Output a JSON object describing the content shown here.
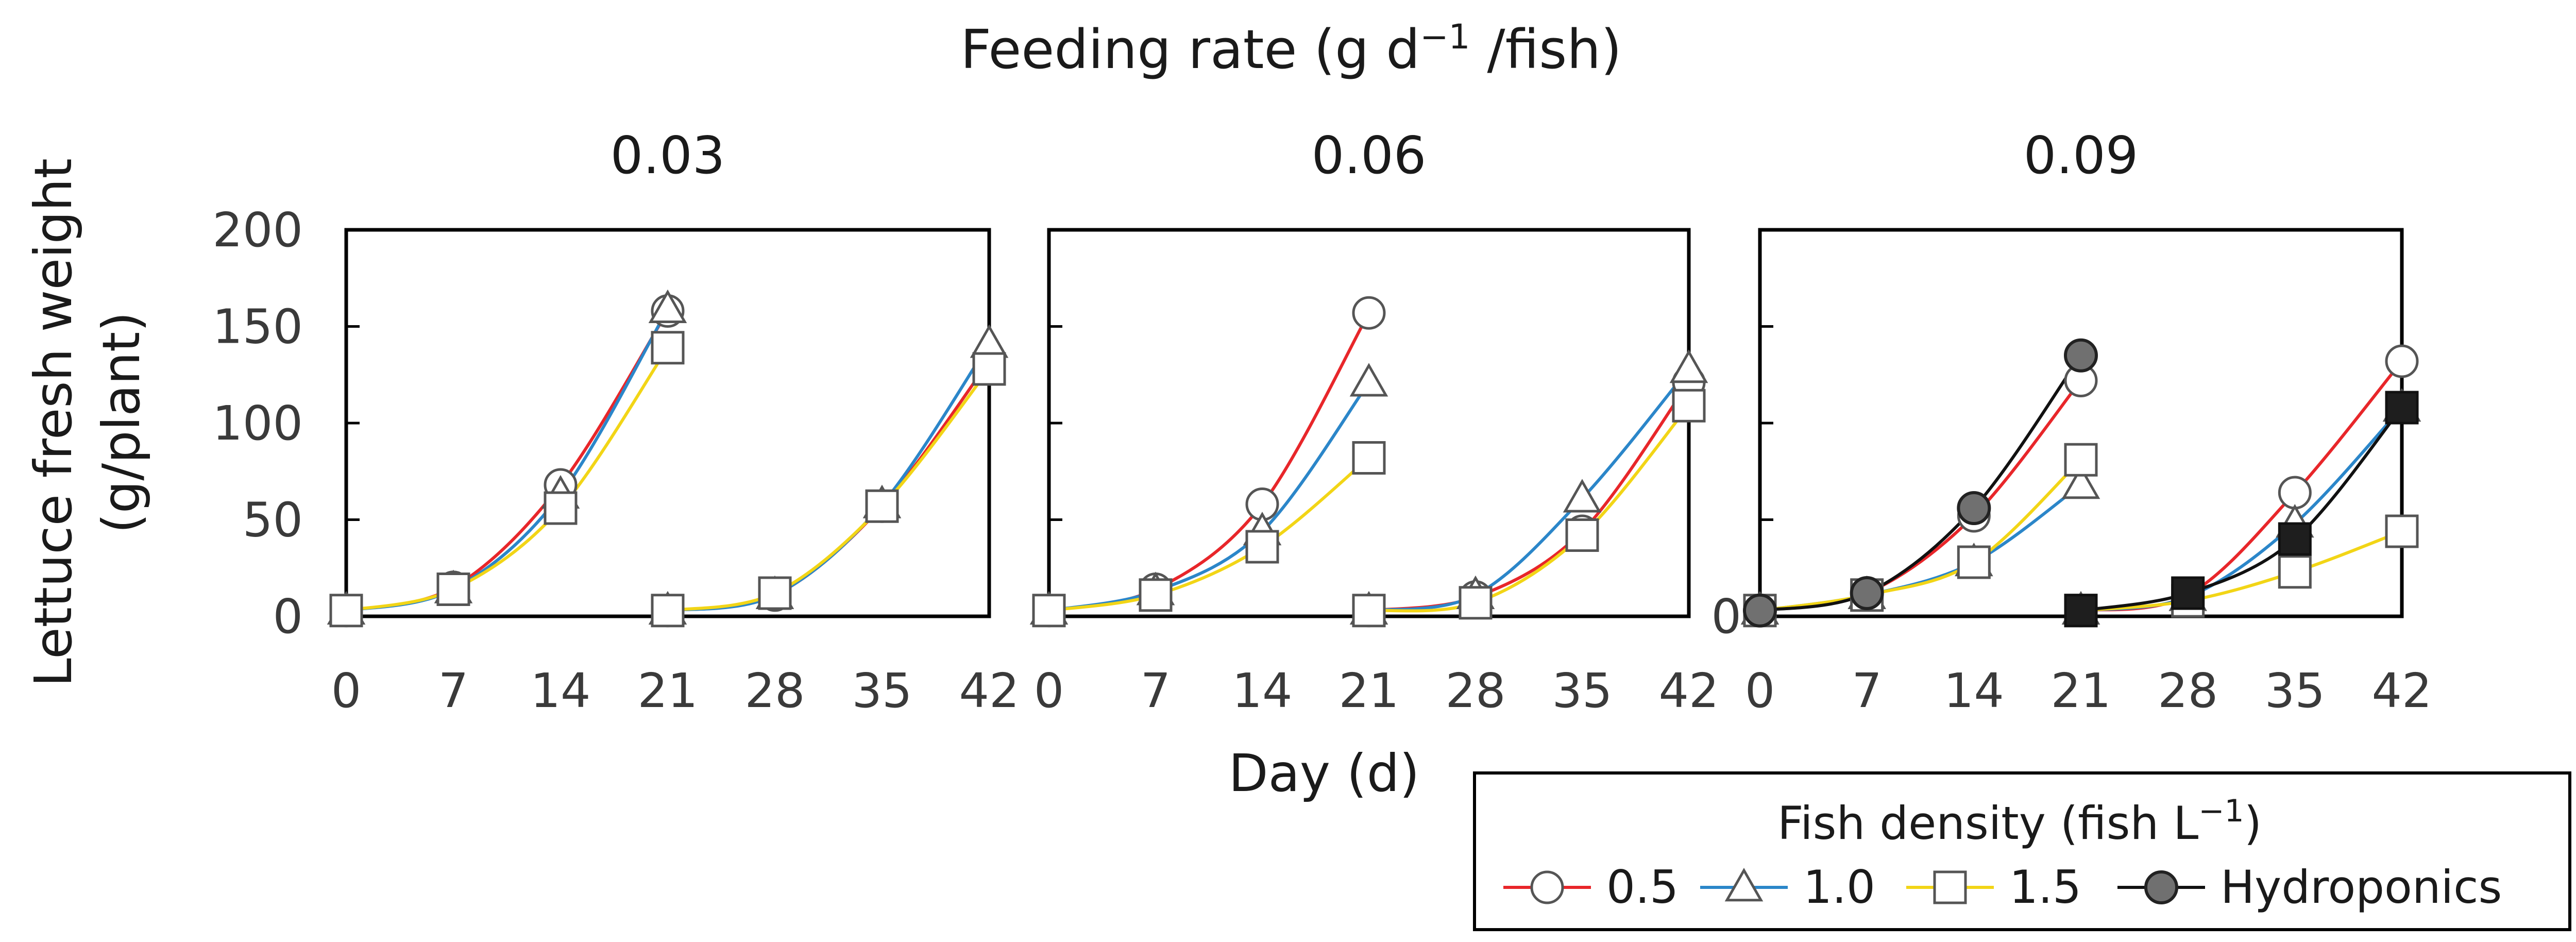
{
  "chart_data": {
    "type": "line",
    "title": "Feeding rate",
    "title_unit_prefix": "(g d",
    "title_unit_exp": "−1",
    "title_unit_suffix": " /fish)",
    "ylabel_line1": "Lettuce fresh weight",
    "ylabel_line2": "(g/plant)",
    "xlabel": "Day (d)",
    "ylim": [
      0,
      200
    ],
    "yticks": [
      0,
      50,
      100,
      150,
      200
    ],
    "xlim": [
      0,
      42
    ],
    "xticks": [
      0,
      7,
      14,
      21,
      28,
      35,
      42
    ],
    "legend": {
      "title_prefix": "Fish density (fish L",
      "title_exp": "−1",
      "title_suffix": ")",
      "placement": "bottom-right",
      "entries": [
        {
          "label": "0.5",
          "color": "#e8262a",
          "marker": "circle"
        },
        {
          "label": "1.0",
          "color": "#2b86c9",
          "marker": "triangle"
        },
        {
          "label": "1.5",
          "color": "#f2d516",
          "marker": "square"
        },
        {
          "label": "Hydroponics",
          "color": "#000000",
          "marker": "filled-circle"
        }
      ]
    },
    "panels": [
      {
        "title": "0.03",
        "series": [
          {
            "name": "0.5 cycle 1",
            "group": "0.5",
            "x": [
              0,
              7,
              14,
              21
            ],
            "y": [
              3,
              15,
              68,
              158
            ]
          },
          {
            "name": "1.0 cycle 1",
            "group": "1.0",
            "x": [
              0,
              7,
              14,
              21
            ],
            "y": [
              3,
              14,
              63,
              159
            ]
          },
          {
            "name": "1.5 cycle 1",
            "group": "1.5",
            "x": [
              0,
              7,
              14,
              21
            ],
            "y": [
              3,
              14,
              56,
              139
            ]
          },
          {
            "name": "0.5 cycle 2",
            "group": "0.5",
            "x": [
              21,
              28,
              35,
              42
            ],
            "y": [
              3,
              11,
              57,
              132
            ]
          },
          {
            "name": "1.0 cycle 2",
            "group": "1.0",
            "x": [
              21,
              28,
              35,
              42
            ],
            "y": [
              3,
              11,
              58,
              141
            ]
          },
          {
            "name": "1.5 cycle 2",
            "group": "1.5",
            "x": [
              21,
              28,
              35,
              42
            ],
            "y": [
              3,
              12,
              57,
              128
            ]
          }
        ]
      },
      {
        "title": "0.06",
        "series": [
          {
            "name": "0.5 cycle 1",
            "group": "0.5",
            "x": [
              0,
              7,
              14,
              21
            ],
            "y": [
              3,
              14,
              58,
              157
            ]
          },
          {
            "name": "1.0 cycle 1",
            "group": "1.0",
            "x": [
              0,
              7,
              14,
              21
            ],
            "y": [
              3,
              13,
              44,
              121
            ]
          },
          {
            "name": "1.5 cycle 1",
            "group": "1.5",
            "x": [
              0,
              7,
              14,
              21
            ],
            "y": [
              3,
              11,
              36,
              82
            ]
          },
          {
            "name": "0.5 cycle 2",
            "group": "0.5",
            "x": [
              21,
              28,
              35,
              42
            ],
            "y": [
              3,
              10,
              44,
              121
            ]
          },
          {
            "name": "1.0 cycle 2",
            "group": "1.0",
            "x": [
              21,
              28,
              35,
              42
            ],
            "y": [
              3,
              11,
              61,
              128
            ]
          },
          {
            "name": "1.5 cycle 2",
            "group": "1.5",
            "x": [
              21,
              28,
              35,
              42
            ],
            "y": [
              3,
              7,
              42,
              109
            ]
          }
        ]
      },
      {
        "title": "0.09",
        "series": [
          {
            "name": "0.5 cycle 1",
            "group": "0.5",
            "x": [
              0,
              7,
              14,
              21
            ],
            "y": [
              3,
              12,
              52,
              122
            ]
          },
          {
            "name": "1.0 cycle 1",
            "group": "1.0",
            "x": [
              0,
              7,
              14,
              21
            ],
            "y": [
              3,
              11,
              28,
              68
            ]
          },
          {
            "name": "1.5 cycle 1",
            "group": "1.5",
            "x": [
              0,
              7,
              14,
              21
            ],
            "y": [
              3,
              11,
              28,
              81
            ]
          },
          {
            "name": "Hydroponics cycle 1",
            "group": "Hydroponics",
            "x": [
              0,
              7,
              14,
              21
            ],
            "y": [
              3,
              12,
              56,
              135
            ]
          },
          {
            "name": "0.5 cycle 2",
            "group": "0.5",
            "x": [
              21,
              28,
              35,
              42
            ],
            "y": [
              3,
              11,
              64,
              132
            ]
          },
          {
            "name": "1.0 cycle 2",
            "group": "1.0",
            "x": [
              21,
              28,
              35,
              42
            ],
            "y": [
              3,
              10,
              48,
              108
            ]
          },
          {
            "name": "1.5 cycle 2",
            "group": "1.5",
            "x": [
              21,
              28,
              35,
              42
            ],
            "y": [
              3,
              8,
              23,
              44
            ]
          },
          {
            "name": "Hydroponics cycle 2",
            "group": "Hydroponics",
            "x": [
              21,
              28,
              35,
              42
            ],
            "y": [
              3,
              12,
              40,
              108
            ]
          }
        ]
      }
    ]
  }
}
